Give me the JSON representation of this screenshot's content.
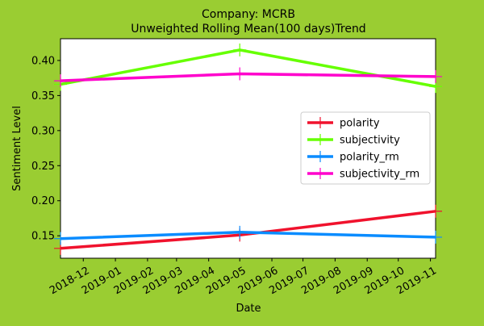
{
  "chart_data": {
    "type": "line",
    "title": "Company: MCRB",
    "subtitle": "Unweighted Rolling Mean(100 days)Trend",
    "xlabel": "Date",
    "ylabel": "Sentiment Level",
    "x_range": [
      "2018-11-09",
      "2019-11-06"
    ],
    "y_range": [
      0.118,
      0.431
    ],
    "x_ticks": [
      "2018-12",
      "2019-01",
      "2019-02",
      "2019-03",
      "2019-04",
      "2019-05",
      "2019-06",
      "2019-07",
      "2019-08",
      "2019-09",
      "2019-10",
      "2019-11"
    ],
    "y_ticks": [
      0.15,
      0.2,
      0.25,
      0.3,
      0.35,
      0.4
    ],
    "grid": false,
    "legend_position": "center-right",
    "series": [
      {
        "name": "polarity",
        "color": "#f0122d",
        "points": [
          [
            "2018-11-09",
            0.132
          ],
          [
            "2019-05-01",
            0.151
          ],
          [
            "2019-11-06",
            0.185
          ]
        ]
      },
      {
        "name": "subjectivity",
        "color": "#66ff00",
        "points": [
          [
            "2018-11-09",
            0.366
          ],
          [
            "2019-05-01",
            0.415
          ],
          [
            "2019-11-06",
            0.363
          ]
        ]
      },
      {
        "name": "polarity_rm",
        "color": "#0a8cff",
        "points": [
          [
            "2018-11-09",
            0.146
          ],
          [
            "2019-05-01",
            0.155
          ],
          [
            "2019-11-06",
            0.148
          ]
        ]
      },
      {
        "name": "subjectivity_rm",
        "color": "#ff00cc",
        "points": [
          [
            "2018-11-09",
            0.371
          ],
          [
            "2019-05-01",
            0.381
          ],
          [
            "2019-11-06",
            0.377
          ]
        ]
      }
    ]
  }
}
